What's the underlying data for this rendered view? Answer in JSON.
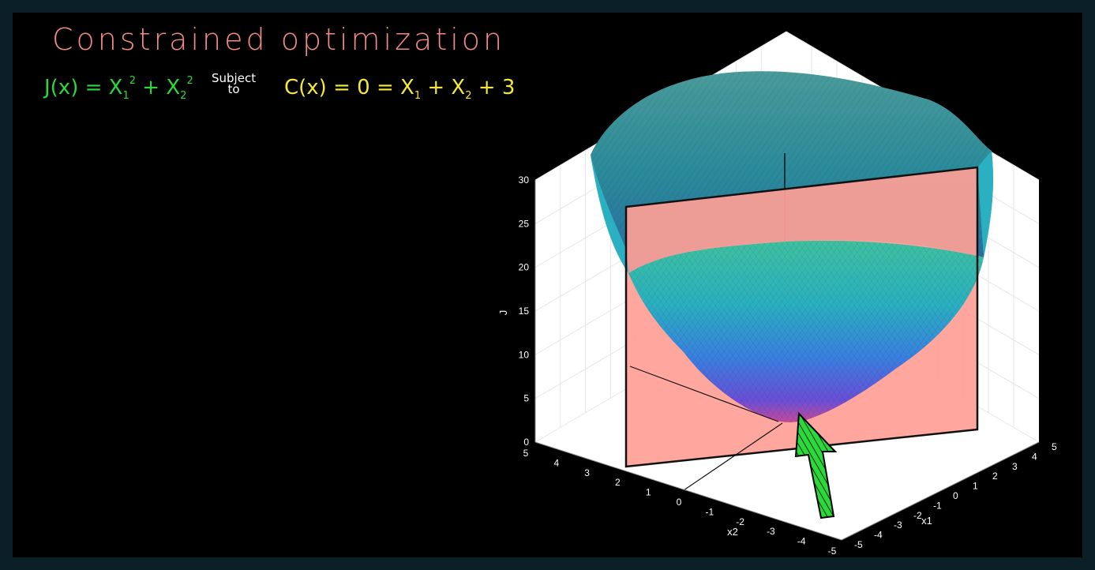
{
  "title": "Constrained optimization",
  "objective": {
    "lhs": "J(x) = X",
    "sub1": "1",
    "sup1": "2",
    "plus": " + X",
    "sub2": "2",
    "sup2": "2"
  },
  "subject_to": "Subject\nto",
  "constraint": {
    "lhs": "C(x) = 0 = X",
    "sub1": "1",
    "plus": " + X",
    "sub2": "2",
    "tail": " + 3"
  },
  "colors": {
    "background": "#000000",
    "title": "#f08a86",
    "objective": "#2bd93a",
    "constraint": "#f5e83a",
    "plane": "#ff9f96",
    "arrow": "#2bd93a"
  },
  "chart_data": {
    "type": "surface",
    "function": "J = x1^2 + x2^2",
    "constraint_plane": "x1 + x2 + 3 = 0",
    "xlabel": "x1",
    "ylabel": "x2",
    "zlabel": "J",
    "xlim": [
      -5,
      5
    ],
    "ylim": [
      -5,
      5
    ],
    "zlim": [
      0,
      30
    ],
    "x1_ticks": [
      "-5",
      "-4",
      "-3",
      "-2",
      "-1",
      "0",
      "1",
      "2",
      "3",
      "4",
      "5"
    ],
    "x2_ticks": [
      "5",
      "4",
      "3",
      "2",
      "1",
      "0",
      "-1",
      "-2",
      "-3",
      "-4",
      "-5"
    ],
    "z_ticks": [
      "0",
      "5",
      "10",
      "15",
      "20",
      "25",
      "30"
    ],
    "grid": true,
    "colormap": [
      "#c44a9a",
      "#6a4fd6",
      "#3a7ee0",
      "#2ab0c0",
      "#3fc0a0"
    ],
    "annotation": "arrow pointing up at the surface minimum"
  }
}
